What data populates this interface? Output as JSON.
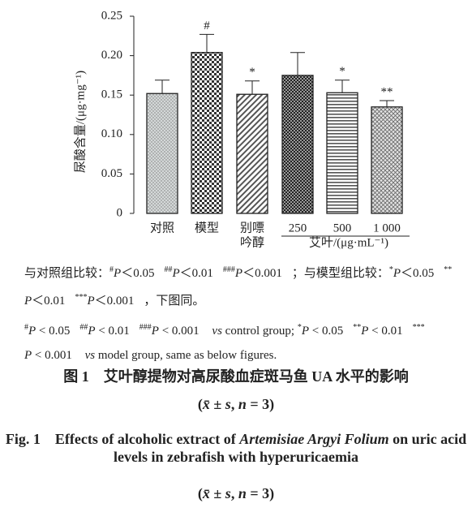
{
  "chart_data": {
    "type": "bar",
    "y_label": "尿酸含量/(μg·mg⁻¹)",
    "categories": [
      [
        "对照"
      ],
      [
        "模型"
      ],
      [
        "别嘌",
        "吟醇"
      ],
      [
        "250"
      ],
      [
        "500"
      ],
      [
        "1 000"
      ]
    ],
    "group_label": "艾叶/(μg·mL⁻¹)",
    "values": [
      0.152,
      0.204,
      0.151,
      0.175,
      0.153,
      0.135
    ],
    "errors": [
      0.017,
      0.023,
      0.017,
      0.029,
      0.016,
      0.008
    ],
    "annotations": [
      null,
      "#",
      "*",
      null,
      "*",
      "**"
    ],
    "patterns": [
      "dots",
      "checker",
      "diagonal",
      "checker-dark",
      "horizontal",
      "crosshatch"
    ],
    "ylim": [
      0,
      0.25
    ],
    "yticks": [
      0,
      0.05,
      {
        "value": 0.1,
        "label": "0.10"
      },
      0.15,
      {
        "value": 0.2,
        "label": "0.20"
      },
      0.25
    ]
  },
  "note_cn": {
    "g1": "与对照组比较：",
    "i1": [
      {
        "sup": "#",
        "text": "P＜0.05"
      },
      {
        "sup": "##",
        "text": "P＜0.01"
      },
      {
        "sup": "###",
        "text": "P＜0.001"
      }
    ],
    "e1": "；",
    "g2": "与模型组比较：",
    "i2": [
      {
        "sup": "*",
        "text": "P＜0.05"
      },
      {
        "sup": "**",
        "text": "P＜0.01"
      },
      {
        "sup": "***",
        "text": "P＜0.001"
      }
    ],
    "e2": "，下图同。"
  },
  "note_en": {
    "i1": [
      {
        "sup": "#",
        "text": "P < 0.05"
      },
      {
        "sup": "##",
        "text": "P < 0.01"
      },
      {
        "sup": "###",
        "text": "P < 0.001"
      }
    ],
    "vs": "vs",
    "e1": "control group;",
    "i2": [
      {
        "sup": "*",
        "text": "P < 0.05"
      },
      {
        "sup": "**",
        "text": "P < 0.01"
      },
      {
        "sup": "***",
        "text": "P < 0.001"
      }
    ],
    "e2": "model group, same as below figures."
  },
  "caption_cn": {
    "title": "图 1　艾叶醇提物对高尿酸血症斑马鱼 UA 水平的影响",
    "stat": [
      "(",
      "x̄",
      " ± ",
      "s",
      ", ",
      "n",
      " = 3)"
    ]
  },
  "caption_en": {
    "a": "Fig. 1　Effects of alcoholic extract of ",
    "b": "Artemisiae Argyi Folium",
    "c": " on uric acid levels in zebrafish with hyperuricaemia",
    "stat": [
      "(",
      "x̄",
      " ± ",
      "s",
      ", ",
      "n",
      " = 3)"
    ]
  }
}
